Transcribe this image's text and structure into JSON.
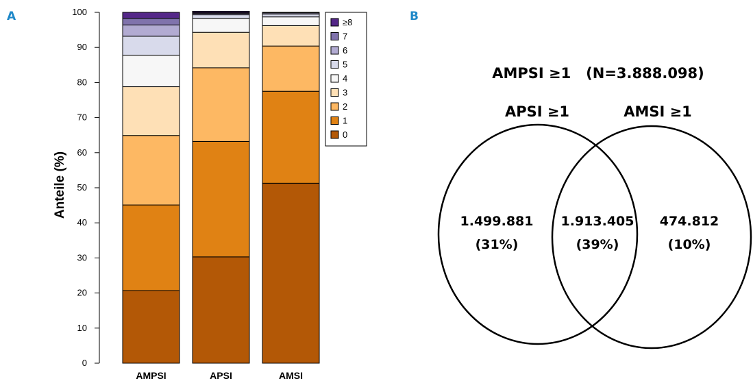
{
  "panel_a_label": "A",
  "panel_b_label": "B",
  "chart_data": {
    "type": "bar",
    "stacked": true,
    "ylabel": "Anteile (%)",
    "xlabel": "",
    "ylim": [
      0,
      100
    ],
    "yticks": [
      0,
      10,
      20,
      30,
      40,
      50,
      60,
      70,
      80,
      90,
      100
    ],
    "categories": [
      "AMPSI",
      "APSI",
      "AMSI"
    ],
    "grid": false,
    "legend_placement": "right",
    "series": [
      {
        "name": "0",
        "color": "#b35806",
        "values": [
          20.7,
          30.3,
          51.3
        ]
      },
      {
        "name": "1",
        "color": "#e08214",
        "values": [
          24.4,
          32.9,
          26.2
        ]
      },
      {
        "name": "2",
        "color": "#fdb863",
        "values": [
          19.8,
          21.0,
          12.9
        ]
      },
      {
        "name": "3",
        "color": "#fee0b6",
        "values": [
          13.9,
          10.1,
          5.8
        ]
      },
      {
        "name": "4",
        "color": "#f7f7f7",
        "values": [
          9.0,
          4.0,
          2.5
        ]
      },
      {
        "name": "5",
        "color": "#d8daeb",
        "values": [
          5.4,
          1.0,
          0.8
        ]
      },
      {
        "name": "6",
        "color": "#b2abd2",
        "values": [
          3.2,
          0.4,
          0.3
        ]
      },
      {
        "name": "7",
        "color": "#8073ac",
        "values": [
          1.9,
          0.2,
          0.1
        ]
      },
      {
        "name": "≥8",
        "color": "#542788",
        "values": [
          1.7,
          0.4,
          0.1
        ]
      }
    ]
  },
  "venn": {
    "title": "AMPSI ≥1   (N=3.888.098)",
    "left_label": "APSI ≥1",
    "right_label": "AMSI ≥1",
    "left_only": {
      "value": "1.499.881",
      "percent": "(31%)"
    },
    "both": {
      "value": "1.913.405",
      "percent": "(39%)"
    },
    "right_only": {
      "value": "474.812",
      "percent": "(10%)"
    }
  }
}
